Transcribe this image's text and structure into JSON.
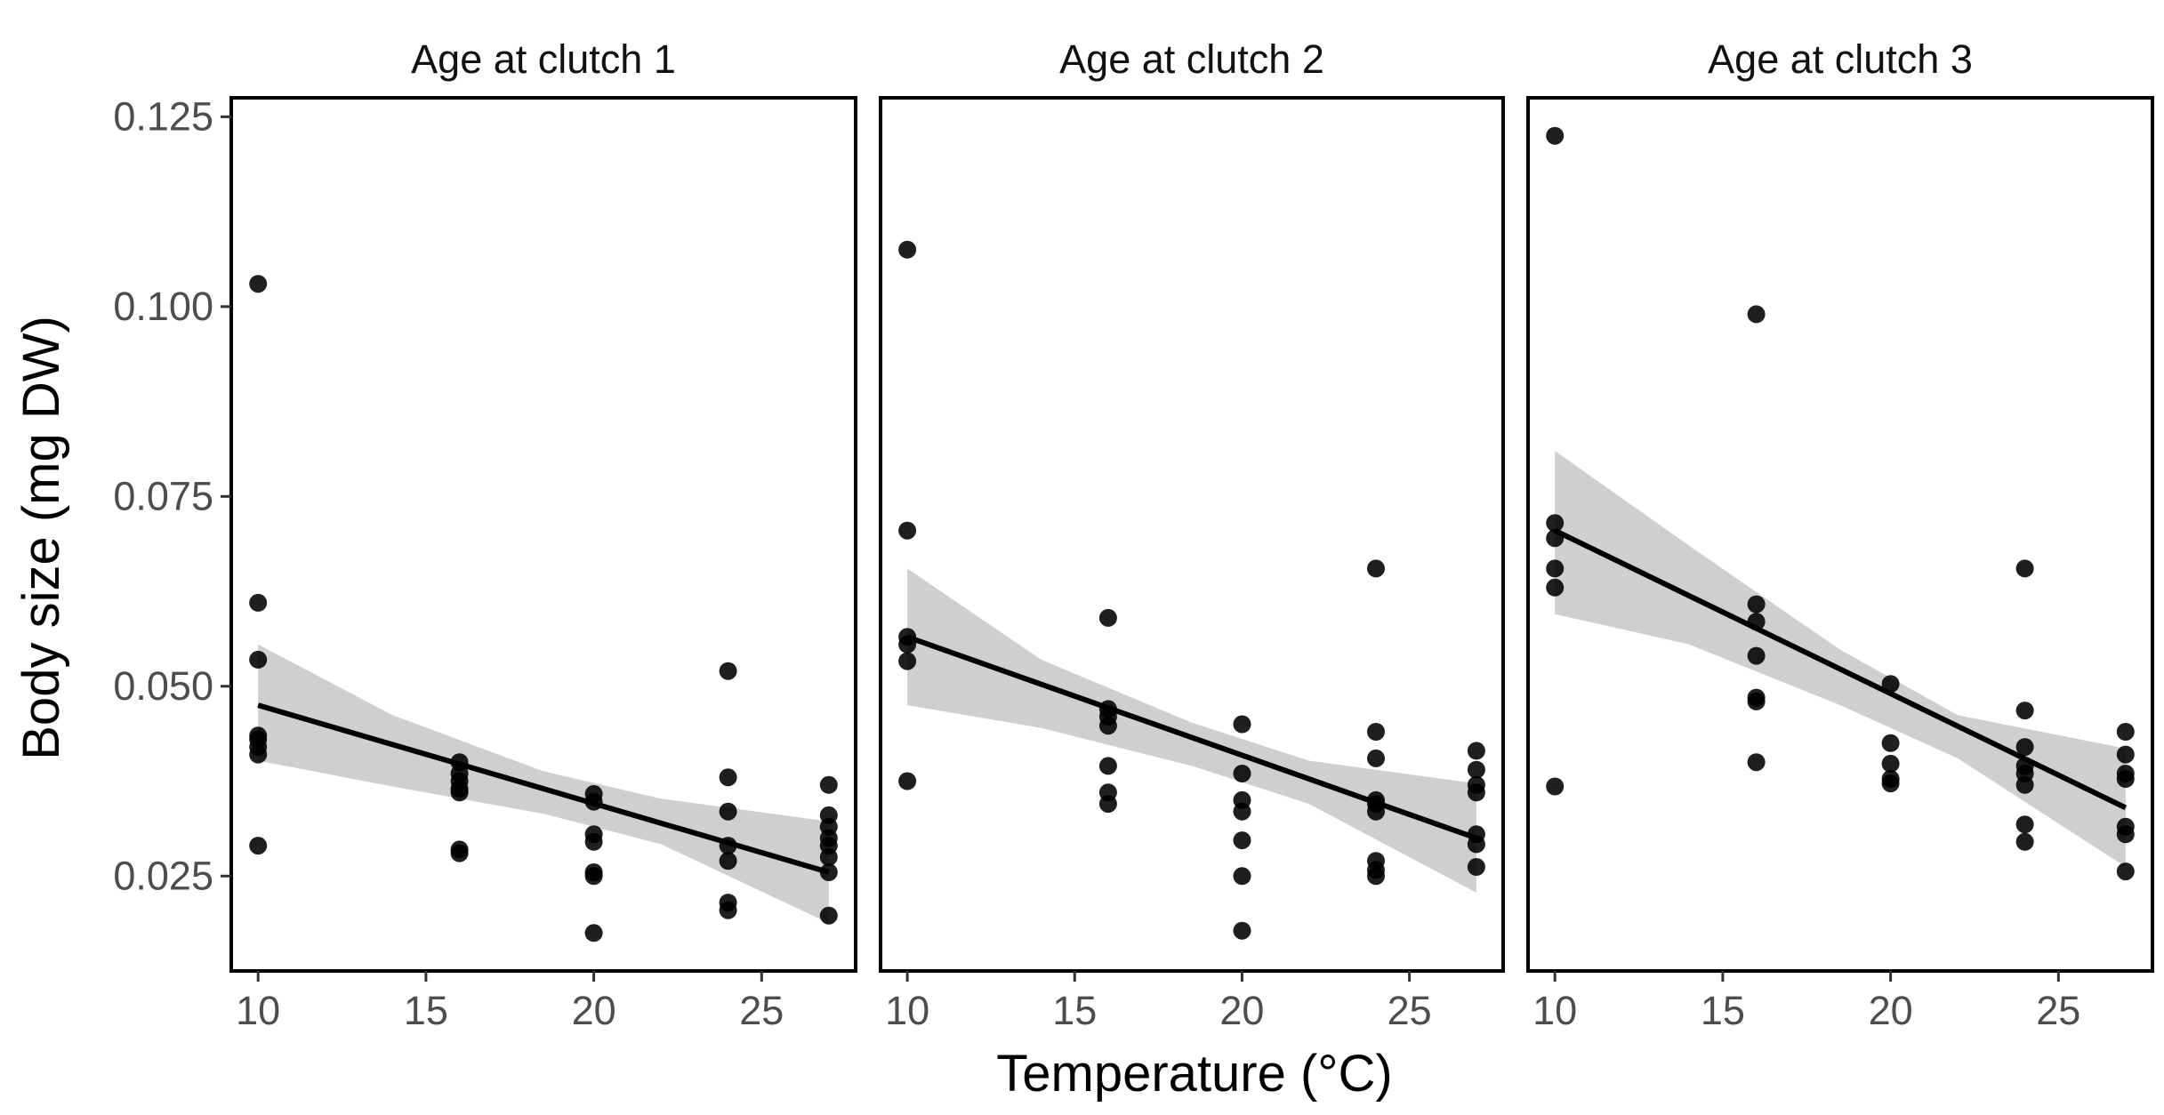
{
  "chart_data": {
    "type": "scatter",
    "xlabel": "Temperature (°C)",
    "ylabel": "Body size (mg DW)",
    "xlim": [
      9.2,
      27.8
    ],
    "ylim": [
      0.0125,
      0.1275
    ],
    "xticks": [
      10,
      15,
      20,
      25
    ],
    "xtick_labels": [
      "10",
      "15",
      "20",
      "25"
    ],
    "yticks": [
      0.025,
      0.05,
      0.075,
      0.1,
      0.125
    ],
    "ytick_labels": [
      "0.025",
      "0.050",
      "0.075",
      "0.100",
      "0.125"
    ],
    "grid": false,
    "legend": "none",
    "colors": {
      "points": "#000000",
      "line": "#000000",
      "band": "#bdbdbd"
    },
    "panels": [
      {
        "title": "Age at clutch 1",
        "points": [
          [
            10,
            0.103
          ],
          [
            10,
            0.061
          ],
          [
            10,
            0.0535
          ],
          [
            10,
            0.0435
          ],
          [
            10,
            0.043
          ],
          [
            10,
            0.042
          ],
          [
            10,
            0.041
          ],
          [
            10,
            0.029
          ],
          [
            16,
            0.04
          ],
          [
            16,
            0.0385
          ],
          [
            16,
            0.0375
          ],
          [
            16,
            0.0365
          ],
          [
            16,
            0.036
          ],
          [
            16,
            0.0285
          ],
          [
            16,
            0.028
          ],
          [
            20,
            0.0358
          ],
          [
            20,
            0.0348
          ],
          [
            20,
            0.0305
          ],
          [
            20,
            0.0295
          ],
          [
            20,
            0.0255
          ],
          [
            20,
            0.025
          ],
          [
            20,
            0.0175
          ],
          [
            24,
            0.052
          ],
          [
            24,
            0.038
          ],
          [
            24,
            0.0335
          ],
          [
            24,
            0.029
          ],
          [
            24,
            0.027
          ],
          [
            24,
            0.0215
          ],
          [
            24,
            0.0205
          ],
          [
            27,
            0.037
          ],
          [
            27,
            0.033
          ],
          [
            27,
            0.0315
          ],
          [
            27,
            0.03
          ],
          [
            27,
            0.029
          ],
          [
            27,
            0.0275
          ],
          [
            27,
            0.0255
          ],
          [
            27,
            0.0198
          ]
        ],
        "fit": {
          "x": [
            10,
            27
          ],
          "y": [
            0.0475,
            0.0255
          ]
        },
        "ci": {
          "x": [
            10,
            14,
            18.5,
            22,
            27
          ],
          "lower": [
            0.0402,
            0.0368,
            0.0332,
            0.0292,
            0.0188
          ],
          "upper": [
            0.0555,
            0.0462,
            0.0388,
            0.0352,
            0.0322
          ]
        }
      },
      {
        "title": "Age at clutch 2",
        "points": [
          [
            10,
            0.1075
          ],
          [
            10,
            0.0705
          ],
          [
            10,
            0.0565
          ],
          [
            10,
            0.0555
          ],
          [
            10,
            0.0533
          ],
          [
            10,
            0.0375
          ],
          [
            16,
            0.059
          ],
          [
            16,
            0.047
          ],
          [
            16,
            0.046
          ],
          [
            16,
            0.0448
          ],
          [
            16,
            0.0395
          ],
          [
            16,
            0.036
          ],
          [
            16,
            0.0345
          ],
          [
            20,
            0.045
          ],
          [
            20,
            0.0385
          ],
          [
            20,
            0.035
          ],
          [
            20,
            0.0335
          ],
          [
            20,
            0.0297
          ],
          [
            20,
            0.025
          ],
          [
            20,
            0.0178
          ],
          [
            24,
            0.0655
          ],
          [
            24,
            0.044
          ],
          [
            24,
            0.0405
          ],
          [
            24,
            0.035
          ],
          [
            24,
            0.0345
          ],
          [
            24,
            0.0335
          ],
          [
            24,
            0.027
          ],
          [
            24,
            0.0258
          ],
          [
            24,
            0.025
          ],
          [
            27,
            0.0415
          ],
          [
            27,
            0.039
          ],
          [
            27,
            0.037
          ],
          [
            27,
            0.036
          ],
          [
            27,
            0.0305
          ],
          [
            27,
            0.0292
          ],
          [
            27,
            0.0262
          ]
        ],
        "fit": {
          "x": [
            10,
            27
          ],
          "y": [
            0.0565,
            0.03
          ]
        },
        "ci": {
          "x": [
            10,
            14,
            18.5,
            22,
            27
          ],
          "lower": [
            0.0475,
            0.0445,
            0.0395,
            0.0345,
            0.0228
          ],
          "upper": [
            0.0655,
            0.0535,
            0.0452,
            0.0402,
            0.0372
          ]
        }
      },
      {
        "title": "Age at clutch 3",
        "points": [
          [
            10,
            0.1225
          ],
          [
            10,
            0.0715
          ],
          [
            10,
            0.0695
          ],
          [
            10,
            0.0655
          ],
          [
            10,
            0.063
          ],
          [
            10,
            0.0368
          ],
          [
            16,
            0.099
          ],
          [
            16,
            0.0608
          ],
          [
            16,
            0.0585
          ],
          [
            16,
            0.054
          ],
          [
            16,
            0.0485
          ],
          [
            16,
            0.048
          ],
          [
            16,
            0.04
          ],
          [
            20,
            0.0503
          ],
          [
            20,
            0.0425
          ],
          [
            20,
            0.0398
          ],
          [
            20,
            0.0378
          ],
          [
            20,
            0.0372
          ],
          [
            24,
            0.0655
          ],
          [
            24,
            0.0468
          ],
          [
            24,
            0.042
          ],
          [
            24,
            0.0395
          ],
          [
            24,
            0.0385
          ],
          [
            24,
            0.037
          ],
          [
            24,
            0.0318
          ],
          [
            24,
            0.0295
          ],
          [
            27,
            0.044
          ],
          [
            27,
            0.041
          ],
          [
            27,
            0.0385
          ],
          [
            27,
            0.0378
          ],
          [
            27,
            0.0315
          ],
          [
            27,
            0.0305
          ],
          [
            27,
            0.0256
          ]
        ],
        "fit": {
          "x": [
            10,
            27
          ],
          "y": [
            0.0705,
            0.034
          ]
        },
        "ci": {
          "x": [
            10,
            14,
            18.5,
            22,
            27
          ],
          "lower": [
            0.0595,
            0.0555,
            0.0475,
            0.0405,
            0.0262
          ],
          "upper": [
            0.081,
            0.0685,
            0.0548,
            0.0462,
            0.0418
          ]
        }
      }
    ]
  }
}
